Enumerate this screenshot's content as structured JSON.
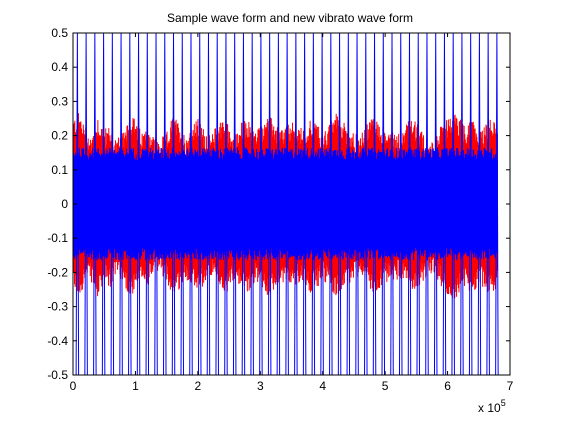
{
  "chart_data": {
    "type": "line",
    "title": "Sample wave form and new vibrato wave form",
    "xlabel": "",
    "ylabel": "",
    "x_multiplier_label": "x 10",
    "x_multiplier_exponent": "5",
    "xlim": [
      0,
      7
    ],
    "ylim": [
      -0.5,
      0.5
    ],
    "x_ticks": [
      "0",
      "1",
      "2",
      "3",
      "4",
      "5",
      "6",
      "7"
    ],
    "y_ticks": [
      "0.5",
      "0.4",
      "0.3",
      "0.2",
      "0.1",
      "0",
      "-0.1",
      "-0.2",
      "-0.3",
      "-0.4",
      "-0.5"
    ],
    "x_tick_values": [
      0,
      1,
      2,
      3,
      4,
      5,
      6,
      7
    ],
    "y_tick_values": [
      0.5,
      0.4,
      0.3,
      0.2,
      0.1,
      0,
      -0.1,
      -0.2,
      -0.3,
      -0.4,
      -0.5
    ],
    "grid": false,
    "legend": false,
    "series": [
      {
        "color": "#ff0000",
        "x_range": [
          0,
          6.8
        ],
        "envelope_upper": [
          0.22,
          0.24,
          0.2,
          0.17,
          0.23,
          0.19,
          0.2,
          0.16,
          0.18,
          0.24,
          0.22,
          0.18,
          0.2,
          0.17,
          0.16,
          0.18,
          0.23,
          0.21,
          0.17,
          0.2,
          0.22,
          0.19,
          0.17,
          0.2,
          0.23,
          0.2,
          0.17,
          0.21,
          0.22,
          0.19,
          0.2,
          0.23,
          0.22,
          0.19,
          0.2,
          0.21,
          0.2,
          0.19,
          0.22,
          0.21,
          0.18,
          0.2,
          0.24,
          0.22,
          0.2,
          0.18,
          0.17,
          0.2,
          0.23,
          0.21,
          0.19,
          0.2,
          0.18,
          0.2,
          0.22,
          0.21,
          0.18,
          0.15,
          0.17,
          0.2,
          0.22,
          0.24,
          0.22,
          0.2,
          0.22,
          0.18,
          0.2,
          0.23,
          0.2
        ],
        "envelope_lower": [
          -0.22,
          -0.24,
          -0.2,
          -0.2,
          -0.25,
          -0.2,
          -0.22,
          -0.17,
          -0.2,
          -0.24,
          -0.23,
          -0.2,
          -0.21,
          -0.18,
          -0.17,
          -0.2,
          -0.24,
          -0.22,
          -0.2,
          -0.2,
          -0.22,
          -0.21,
          -0.18,
          -0.21,
          -0.24,
          -0.22,
          -0.19,
          -0.22,
          -0.23,
          -0.2,
          -0.2,
          -0.24,
          -0.23,
          -0.2,
          -0.2,
          -0.22,
          -0.2,
          -0.2,
          -0.23,
          -0.22,
          -0.19,
          -0.21,
          -0.24,
          -0.23,
          -0.21,
          -0.19,
          -0.18,
          -0.2,
          -0.24,
          -0.22,
          -0.2,
          -0.21,
          -0.19,
          -0.2,
          -0.22,
          -0.22,
          -0.2,
          -0.17,
          -0.19,
          -0.21,
          -0.24,
          -0.26,
          -0.23,
          -0.21,
          -0.24,
          -0.2,
          -0.22,
          -0.24,
          -0.22
        ]
      },
      {
        "color": "#0000ff",
        "x_range": [
          0,
          6.8
        ],
        "body_amplitude": 0.15,
        "spike_period": 0.14,
        "spike_amplitude": 0.5
      }
    ]
  },
  "colors": {
    "axis": "#000000",
    "background": "#ffffff"
  }
}
